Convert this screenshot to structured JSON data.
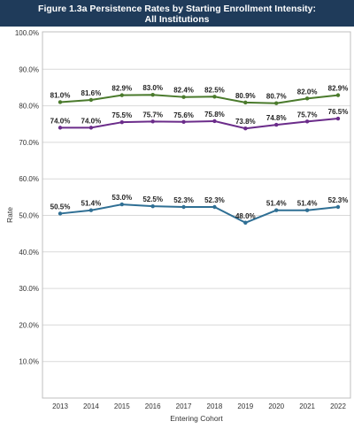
{
  "chart_data": {
    "type": "line",
    "title_line1": "Figure 1.3a Persistence Rates by Starting Enrollment Intensity:",
    "title_line2": "All Institutions",
    "xlabel": "Entering Cohort",
    "ylabel": "Rate",
    "categories": [
      "2013",
      "2014",
      "2015",
      "2016",
      "2017",
      "2018",
      "2019",
      "2020",
      "2021",
      "2022"
    ],
    "ylim": [
      0,
      100
    ],
    "yticks": [
      "100.0%",
      "90.0%",
      "80.0%",
      "70.0%",
      "60.0%",
      "50.0%",
      "40.0%",
      "30.0%",
      "20.0%",
      "10.0%"
    ],
    "grid": true,
    "legend": "none",
    "series": [
      {
        "color": "#4a7a2c",
        "values": [
          81.0,
          81.6,
          82.9,
          83.0,
          82.4,
          82.5,
          80.9,
          80.7,
          82.0,
          82.9
        ],
        "labels": [
          "81.0%",
          "81.6%",
          "82.9%",
          "83.0%",
          "82.4%",
          "82.5%",
          "80.9%",
          "80.7%",
          "82.0%",
          "82.9%"
        ]
      },
      {
        "color": "#6b2c8a",
        "values": [
          74.0,
          74.0,
          75.5,
          75.7,
          75.6,
          75.8,
          73.8,
          74.8,
          75.7,
          76.5
        ],
        "labels": [
          "74.0%",
          "74.0%",
          "75.5%",
          "75.7%",
          "75.6%",
          "75.8%",
          "73.8%",
          "74.8%",
          "75.7%",
          "76.5%"
        ]
      },
      {
        "color": "#2f6f94",
        "values": [
          50.5,
          51.4,
          53.0,
          52.5,
          52.3,
          52.3,
          48.0,
          51.4,
          51.4,
          52.3
        ],
        "labels": [
          "50.5%",
          "51.4%",
          "53.0%",
          "52.5%",
          "52.3%",
          "52.3%",
          "48.0%",
          "51.4%",
          "51.4%",
          "52.3%"
        ]
      }
    ]
  }
}
